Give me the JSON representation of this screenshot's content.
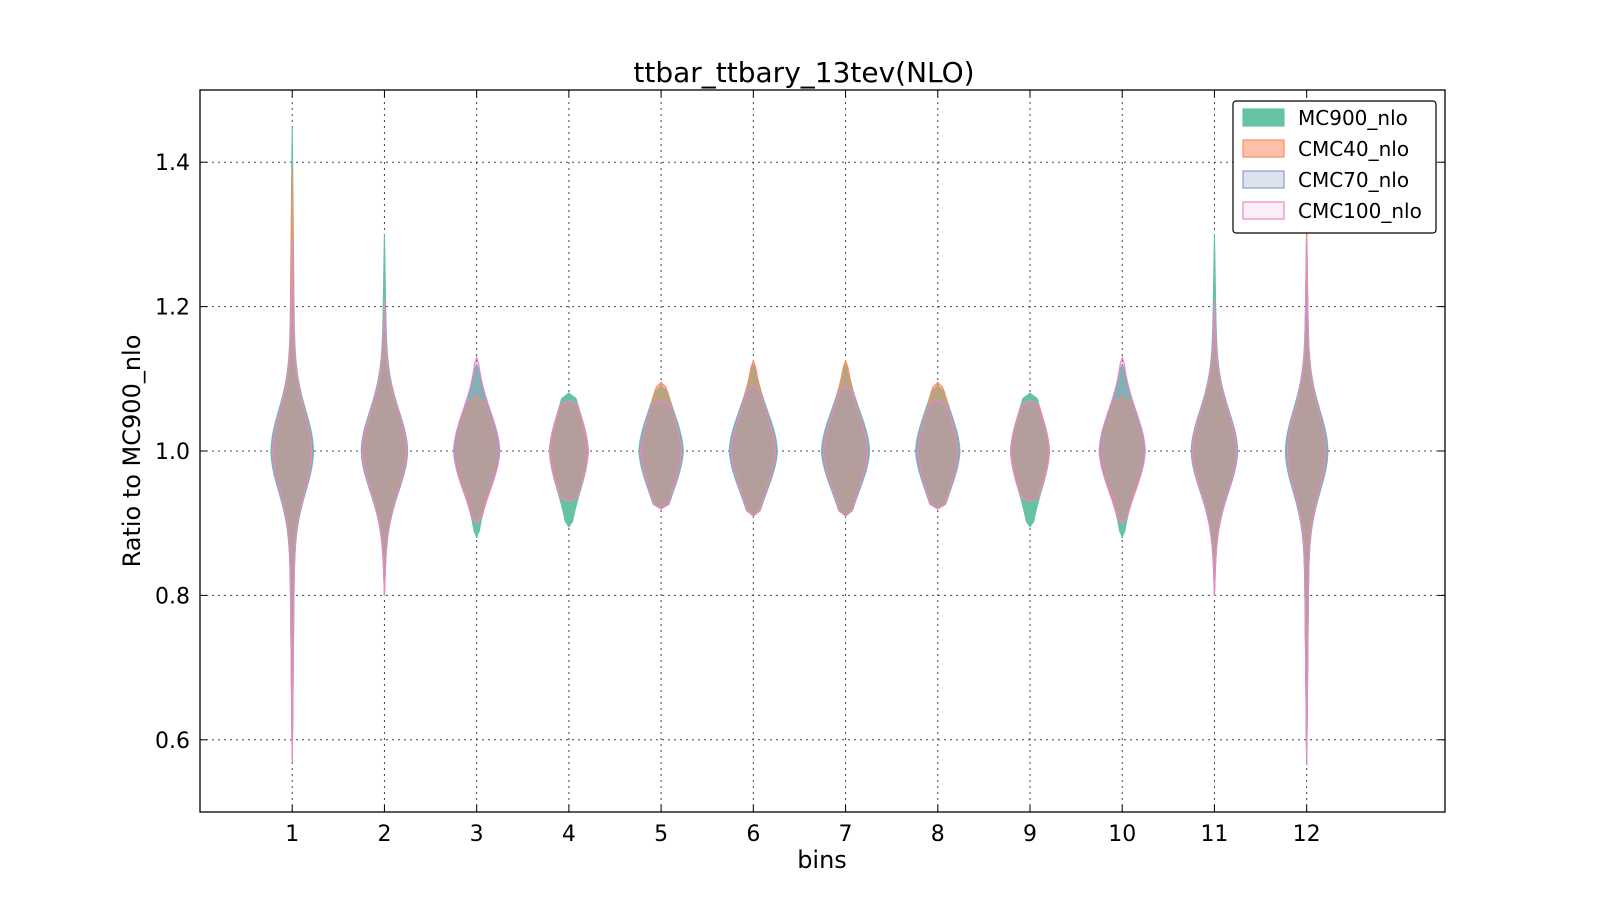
{
  "chart_data": {
    "type": "violin",
    "title": "ttbar_ttbary_13tev(NLO)",
    "xlabel": "bins",
    "ylabel": "Ratio to MC900_nlo",
    "categories": [
      "1",
      "2",
      "3",
      "4",
      "5",
      "6",
      "7",
      "8",
      "9",
      "10",
      "11",
      "12"
    ],
    "xlim": [
      0,
      13.5
    ],
    "ylim": [
      0.5,
      1.5
    ],
    "yticks": [
      0.6,
      0.8,
      1.0,
      1.2,
      1.4
    ],
    "yticklabels": [
      "0.6",
      "0.8",
      "1.0",
      "1.2",
      "1.4"
    ],
    "grid": true,
    "legend_position": "top-right",
    "series": [
      {
        "name": "MC900_nlo",
        "fill": "#66c2a5",
        "edge": "#66c2a5",
        "fill_opacity": 1.0,
        "min": [
          0.57,
          0.8,
          0.88,
          0.895,
          0.92,
          0.91,
          0.91,
          0.92,
          0.895,
          0.88,
          0.8,
          0.57
        ],
        "max": [
          1.45,
          1.3,
          1.12,
          1.08,
          1.09,
          1.12,
          1.12,
          1.09,
          1.08,
          1.12,
          1.3,
          1.31
        ],
        "halfwidth": [
          0.23,
          0.25,
          0.23,
          0.21,
          0.24,
          0.26,
          0.26,
          0.24,
          0.21,
          0.23,
          0.25,
          0.23
        ]
      },
      {
        "name": "CMC40_nlo",
        "fill": "#fc8d62",
        "edge": "#fc8d62",
        "fill_opacity": 0.55,
        "min": [
          0.57,
          0.8,
          0.9,
          0.93,
          0.92,
          0.91,
          0.91,
          0.92,
          0.93,
          0.9,
          0.8,
          0.57
        ],
        "max": [
          1.39,
          1.2,
          1.075,
          1.07,
          1.095,
          1.125,
          1.125,
          1.095,
          1.07,
          1.075,
          1.2,
          1.31
        ],
        "halfwidth": [
          0.21,
          0.24,
          0.22,
          0.2,
          0.22,
          0.24,
          0.24,
          0.22,
          0.2,
          0.22,
          0.24,
          0.21
        ]
      },
      {
        "name": "CMC70_nlo",
        "fill": "#8da0cb",
        "edge": "#8da0cb",
        "fill_opacity": 0.3,
        "min": [
          0.57,
          0.8,
          0.9,
          0.93,
          0.92,
          0.91,
          0.91,
          0.92,
          0.93,
          0.9,
          0.8,
          0.565
        ],
        "max": [
          1.23,
          1.2,
          1.12,
          1.07,
          1.07,
          1.09,
          1.09,
          1.07,
          1.07,
          1.12,
          1.2,
          1.23
        ],
        "halfwidth": [
          0.22,
          0.25,
          0.24,
          0.21,
          0.23,
          0.25,
          0.25,
          0.23,
          0.21,
          0.24,
          0.25,
          0.22
        ]
      },
      {
        "name": "CMC100_nlo",
        "fill": "#e78ac3",
        "edge": "#e78ac3",
        "fill_opacity": 0.15,
        "min": [
          0.57,
          0.8,
          0.9,
          0.93,
          0.92,
          0.91,
          0.91,
          0.92,
          0.93,
          0.9,
          0.8,
          0.57
        ],
        "max": [
          1.29,
          1.21,
          1.13,
          1.07,
          1.07,
          1.09,
          1.09,
          1.07,
          1.07,
          1.13,
          1.21,
          1.29
        ],
        "halfwidth": [
          0.21,
          0.24,
          0.25,
          0.21,
          0.22,
          0.24,
          0.24,
          0.22,
          0.21,
          0.25,
          0.24,
          0.21
        ]
      }
    ]
  }
}
